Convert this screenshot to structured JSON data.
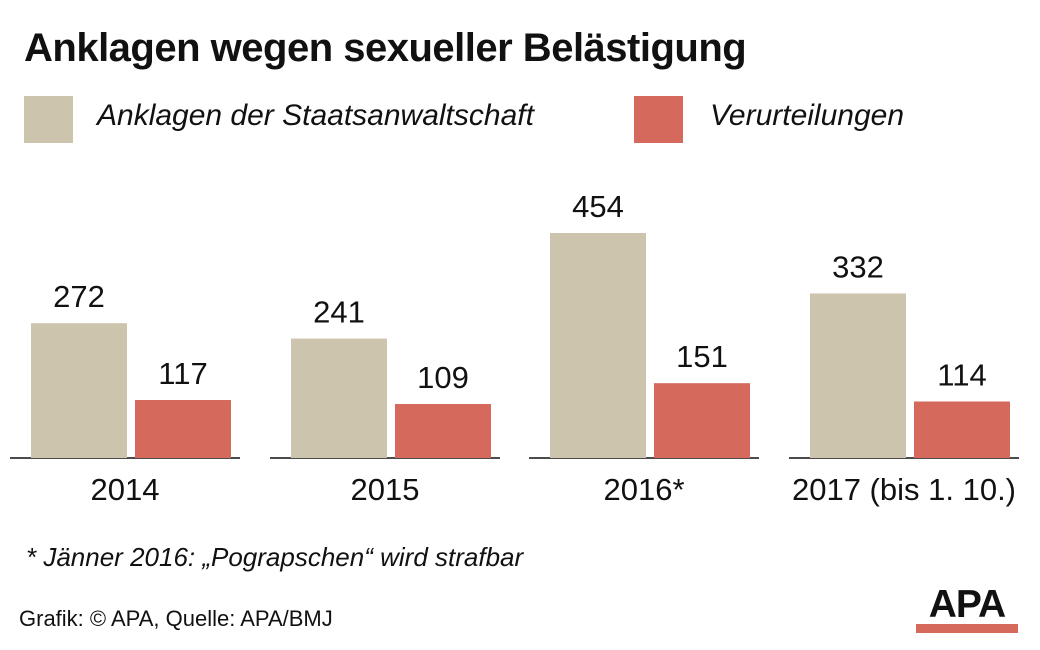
{
  "title": "Anklagen wegen sexueller Belästigung",
  "colors": {
    "anklagen": "#cdc4ad",
    "verurteilungen": "#d5695b",
    "text": "#111111",
    "axis": "#111111"
  },
  "chart_data": {
    "type": "bar",
    "title": "Anklagen wegen sexueller Belästigung",
    "categories": [
      "2014",
      "2015",
      "2016*",
      "2017 (bis 1. 10.)"
    ],
    "series": [
      {
        "name": "Anklagen der Staatsanwaltschaft",
        "values": [
          272,
          241,
          454,
          332
        ],
        "color": "#cdc4ad"
      },
      {
        "name": "Verurteilungen",
        "values": [
          117,
          109,
          151,
          114
        ],
        "color": "#d5695b"
      }
    ],
    "xlabel": "",
    "ylabel": "",
    "ylim": [
      0,
      454
    ],
    "grid": false,
    "legend": "top"
  },
  "footnote": "* Jänner 2016: „Pograpschen“ wird strafbar",
  "credit": "Grafik: © APA, Quelle: APA/BMJ",
  "logo_text": "APA"
}
